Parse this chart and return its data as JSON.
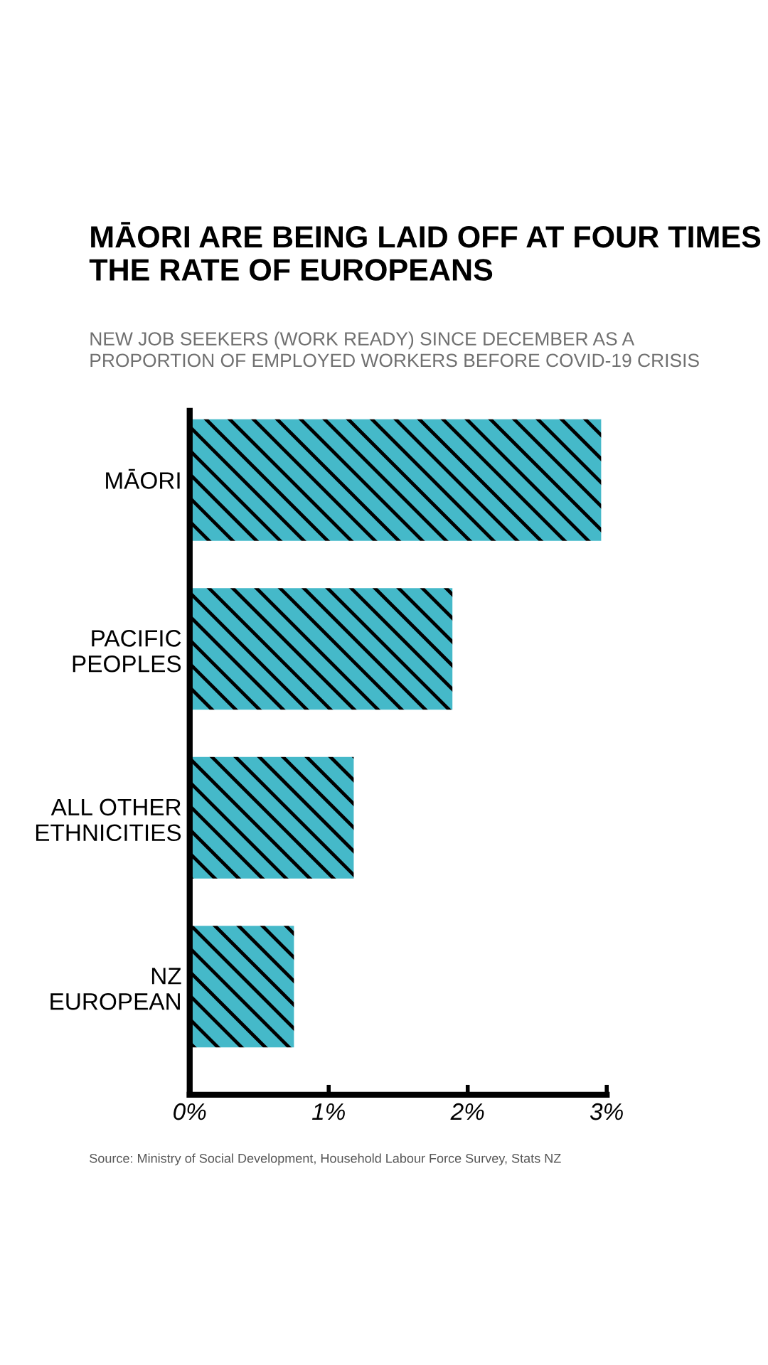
{
  "chart_data": {
    "type": "bar",
    "orientation": "horizontal",
    "title": "MĀORI ARE BEING LAID OFF AT FOUR TIMES\nTHE RATE OF EUROPEANS",
    "subtitle": "NEW JOB SEEKERS (WORK READY) SINCE DECEMBER AS A\nPROPORTION OF EMPLOYED WORKERS BEFORE COVID-19 CRISIS",
    "categories": [
      "MĀORI",
      "PACIFIC\nPEOPLES",
      "ALL OTHER\nETHNICITIES",
      "NZ\nEUROPEAN"
    ],
    "values": [
      2.96,
      1.89,
      1.18,
      0.75
    ],
    "color": "#45b9c9",
    "xlim": [
      0,
      3
    ],
    "xticks": [
      {
        "value": 0,
        "label": "0%"
      },
      {
        "value": 1,
        "label": "1%"
      },
      {
        "value": 2,
        "label": "2%"
      },
      {
        "value": 3,
        "label": "3%"
      }
    ],
    "grid": false,
    "annotations": [
      "Source: Ministry of Social Development, Household Labour Force Survey, Stats NZ"
    ]
  }
}
